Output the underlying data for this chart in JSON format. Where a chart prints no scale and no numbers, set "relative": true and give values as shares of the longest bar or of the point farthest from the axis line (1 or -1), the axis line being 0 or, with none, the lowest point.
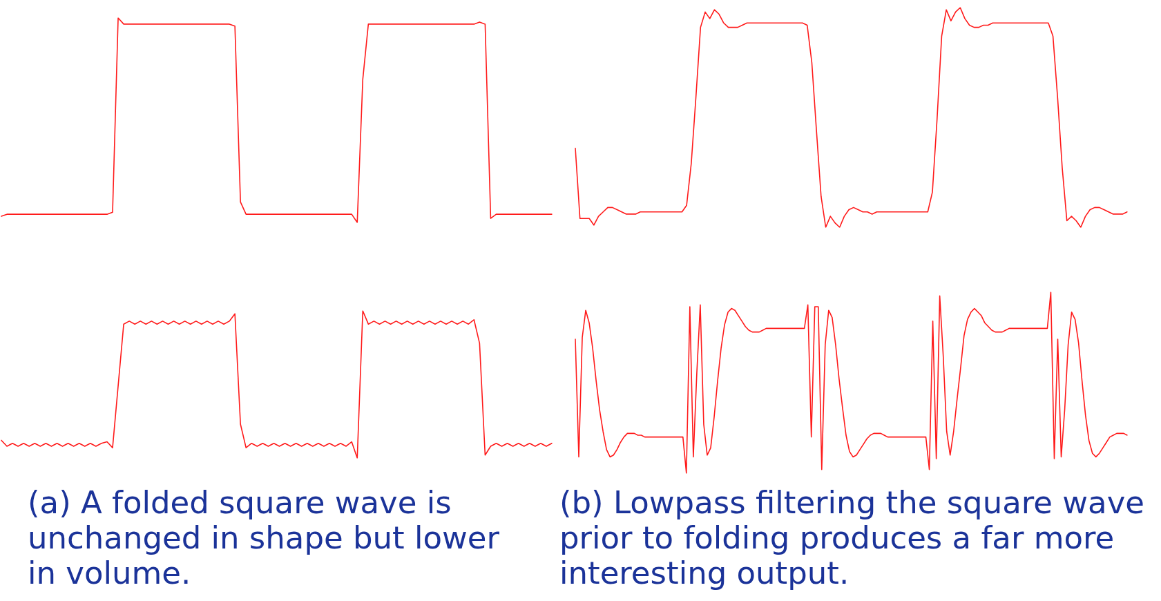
{
  "chart_data": [
    {
      "type": "line",
      "relative": true,
      "color": "#ff1a1a",
      "categories": [
        null,
        null,
        null,
        null,
        null,
        null,
        null,
        null,
        null,
        null,
        null,
        null,
        null,
        null,
        null,
        null,
        null,
        null,
        null,
        null,
        null,
        null,
        null,
        null,
        null,
        null,
        null,
        null,
        null,
        null,
        null,
        null,
        null,
        null,
        null,
        null,
        null,
        null,
        null,
        null,
        null,
        null,
        null,
        null,
        null,
        null,
        null,
        null,
        null,
        null,
        null,
        null,
        null,
        null,
        null,
        null,
        null,
        null,
        null,
        null,
        null,
        null,
        null,
        null,
        null,
        null,
        null,
        null,
        null,
        null,
        null,
        null,
        null,
        null,
        null,
        null,
        null,
        null,
        null,
        null,
        null,
        null,
        null,
        null,
        null,
        null,
        null,
        null,
        null,
        null,
        null,
        null,
        null,
        null,
        null,
        null,
        null,
        null,
        null,
        null
      ],
      "values": [
        0.03,
        0.04,
        0.04,
        0.04,
        0.04,
        0.04,
        0.04,
        0.04,
        0.04,
        0.04,
        0.04,
        0.04,
        0.04,
        0.04,
        0.04,
        0.04,
        0.04,
        0.04,
        0.04,
        0.04,
        0.05,
        1,
        0.97,
        0.97,
        0.97,
        0.97,
        0.97,
        0.97,
        0.97,
        0.97,
        0.97,
        0.97,
        0.97,
        0.97,
        0.97,
        0.97,
        0.97,
        0.97,
        0.97,
        0.97,
        0.97,
        0.97,
        0.96,
        0.1,
        0.04,
        0.04,
        0.04,
        0.04,
        0.04,
        0.04,
        0.04,
        0.04,
        0.04,
        0.04,
        0.04,
        0.04,
        0.04,
        0.04,
        0.04,
        0.04,
        0.04,
        0.04,
        0.04,
        0.04,
        0,
        0.7,
        0.97,
        0.97,
        0.97,
        0.97,
        0.97,
        0.97,
        0.97,
        0.97,
        0.97,
        0.97,
        0.97,
        0.97,
        0.97,
        0.97,
        0.97,
        0.97,
        0.97,
        0.97,
        0.97,
        0.97,
        0.98,
        0.97,
        0.02,
        0.04,
        0.04,
        0.04,
        0.04,
        0.04,
        0.04,
        0.04,
        0.04,
        0.04,
        0.04,
        0.04
      ]
    },
    {
      "type": "line",
      "relative": true,
      "color": "#ff1a1a",
      "categories": [
        null,
        null,
        null,
        null,
        null,
        null,
        null,
        null,
        null,
        null,
        null,
        null,
        null,
        null,
        null,
        null,
        null,
        null,
        null,
        null,
        null,
        null,
        null,
        null,
        null,
        null,
        null,
        null,
        null,
        null,
        null,
        null,
        null,
        null,
        null,
        null,
        null,
        null,
        null,
        null,
        null,
        null,
        null,
        null,
        null,
        null,
        null,
        null,
        null,
        null,
        null,
        null,
        null,
        null,
        null,
        null,
        null,
        null,
        null,
        null,
        null,
        null,
        null,
        null,
        null,
        null,
        null,
        null,
        null,
        null,
        null,
        null,
        null,
        null,
        null,
        null,
        null,
        null,
        null,
        null,
        null,
        null,
        null,
        null,
        null,
        null,
        null,
        null,
        null,
        null,
        null,
        null,
        null,
        null,
        null,
        null,
        null,
        null,
        null,
        null,
        null,
        null,
        null,
        null,
        null,
        null,
        null,
        null,
        null,
        null,
        null,
        null,
        null,
        null,
        null,
        null,
        null,
        null,
        null,
        null
      ],
      "values": [
        0.36,
        0.04,
        0.04,
        0.04,
        0.01,
        0.05,
        0.07,
        0.09,
        0.09,
        0.08,
        0.07,
        0.06,
        0.06,
        0.06,
        0.07,
        0.07,
        0.07,
        0.07,
        0.07,
        0.07,
        0.07,
        0.07,
        0.07,
        0.07,
        0.1,
        0.29,
        0.59,
        0.91,
        0.98,
        0.95,
        0.99,
        0.97,
        0.93,
        0.91,
        0.91,
        0.91,
        0.92,
        0.93,
        0.93,
        0.93,
        0.93,
        0.93,
        0.93,
        0.93,
        0.93,
        0.93,
        0.93,
        0.93,
        0.93,
        0.93,
        0.92,
        0.75,
        0.44,
        0.14,
        0,
        0.05,
        0.02,
        0,
        0.05,
        0.08,
        0.09,
        0.08,
        0.07,
        0.07,
        0.06,
        0.07,
        0.07,
        0.07,
        0.07,
        0.07,
        0.07,
        0.07,
        0.07,
        0.07,
        0.07,
        0.07,
        0.07,
        0.16,
        0.49,
        0.87,
        0.99,
        0.94,
        0.98,
        1,
        0.95,
        0.92,
        0.91,
        0.91,
        0.92,
        0.92,
        0.93,
        0.93,
        0.93,
        0.93,
        0.93,
        0.93,
        0.93,
        0.93,
        0.93,
        0.93,
        0.93,
        0.93,
        0.93,
        0.87,
        0.59,
        0.27,
        0.03,
        0.05,
        0.03,
        0,
        0.05,
        0.08,
        0.09,
        0.09,
        0.08,
        0.07,
        0.06,
        0.06,
        0.06,
        0.07
      ]
    },
    {
      "type": "line",
      "relative": true,
      "color": "#ff1a1a",
      "categories": [
        null,
        null,
        null,
        null,
        null,
        null,
        null,
        null,
        null,
        null,
        null,
        null,
        null,
        null,
        null,
        null,
        null,
        null,
        null,
        null,
        null,
        null,
        null,
        null,
        null,
        null,
        null,
        null,
        null,
        null,
        null,
        null,
        null,
        null,
        null,
        null,
        null,
        null,
        null,
        null,
        null,
        null,
        null,
        null,
        null,
        null,
        null,
        null,
        null,
        null,
        null,
        null,
        null,
        null,
        null,
        null,
        null,
        null,
        null,
        null,
        null,
        null,
        null,
        null,
        null,
        null,
        null,
        null,
        null,
        null,
        null,
        null,
        null,
        null,
        null,
        null,
        null,
        null,
        null,
        null,
        null,
        null,
        null,
        null,
        null,
        null,
        null,
        null,
        null,
        null,
        null,
        null,
        null,
        null,
        null,
        null,
        null,
        null,
        null,
        null
      ],
      "values": [
        0.12,
        0.08,
        0.1,
        0.08,
        0.1,
        0.08,
        0.1,
        0.08,
        0.1,
        0.08,
        0.1,
        0.08,
        0.1,
        0.08,
        0.1,
        0.08,
        0.1,
        0.08,
        0.1,
        0.11,
        0.07,
        0.49,
        0.91,
        0.93,
        0.91,
        0.93,
        0.91,
        0.93,
        0.91,
        0.93,
        0.91,
        0.93,
        0.91,
        0.93,
        0.91,
        0.93,
        0.91,
        0.93,
        0.91,
        0.93,
        0.91,
        0.93,
        0.98,
        0.23,
        0.07,
        0.1,
        0.08,
        0.1,
        0.08,
        0.1,
        0.08,
        0.1,
        0.08,
        0.1,
        0.08,
        0.1,
        0.08,
        0.1,
        0.08,
        0.1,
        0.08,
        0.1,
        0.08,
        0.11,
        0,
        1,
        0.91,
        0.93,
        0.91,
        0.93,
        0.91,
        0.93,
        0.91,
        0.93,
        0.91,
        0.93,
        0.91,
        0.93,
        0.91,
        0.93,
        0.91,
        0.93,
        0.91,
        0.93,
        0.91,
        0.94,
        0.78,
        0.02,
        0.08,
        0.1,
        0.08,
        0.1,
        0.08,
        0.1,
        0.08,
        0.1,
        0.08,
        0.1,
        0.08,
        0.1
      ],
      "annotations": [
        "(a) A folded square wave is unchanged in shape but lower in volume."
      ]
    },
    {
      "type": "line",
      "relative": true,
      "color": "#ff1a1a",
      "categories": [
        null,
        null,
        null,
        null,
        null,
        null,
        null,
        null,
        null,
        null,
        null,
        null,
        null,
        null,
        null,
        null,
        null,
        null,
        null,
        null,
        null,
        null,
        null,
        null,
        null,
        null,
        null,
        null,
        null,
        null,
        null,
        null,
        null,
        null,
        null,
        null,
        null,
        null,
        null,
        null,
        null,
        null,
        null,
        null,
        null,
        null,
        null,
        null,
        null,
        null,
        null,
        null,
        null,
        null,
        null,
        null,
        null,
        null,
        null,
        null,
        null,
        null,
        null,
        null,
        null,
        null,
        null,
        null,
        null,
        null,
        null,
        null,
        null,
        null,
        null,
        null,
        null,
        null,
        null,
        null,
        null,
        null,
        null,
        null,
        null,
        null,
        null,
        null,
        null,
        null,
        null,
        null,
        null,
        null,
        null,
        null,
        null,
        null,
        null,
        null,
        null,
        null,
        null,
        null,
        null,
        null,
        null,
        null,
        null,
        null,
        null,
        null,
        null,
        null,
        null,
        null,
        null,
        null,
        null,
        null,
        null,
        null,
        null,
        null,
        null,
        null,
        null,
        null,
        null,
        null,
        null,
        null,
        null,
        null,
        null,
        null,
        null,
        null,
        null,
        null,
        null,
        null,
        null,
        null,
        null,
        null,
        null,
        null,
        null,
        null,
        null,
        null,
        null,
        null,
        null,
        null,
        null,
        null,
        null,
        null
      ],
      "values": [
        0.74,
        0.09,
        0.75,
        0.9,
        0.83,
        0.69,
        0.51,
        0.35,
        0.23,
        0.13,
        0.09,
        0.1,
        0.13,
        0.17,
        0.2,
        0.22,
        0.22,
        0.22,
        0.21,
        0.21,
        0.2,
        0.2,
        0.2,
        0.2,
        0.2,
        0.2,
        0.2,
        0.2,
        0.2,
        0.2,
        0.2,
        0.2,
        0,
        0.92,
        0.09,
        0.55,
        0.93,
        0.27,
        0.1,
        0.14,
        0.31,
        0.51,
        0.69,
        0.82,
        0.89,
        0.91,
        0.9,
        0.87,
        0.84,
        0.81,
        0.79,
        0.78,
        0.78,
        0.78,
        0.79,
        0.8,
        0.8,
        0.8,
        0.8,
        0.8,
        0.8,
        0.8,
        0.8,
        0.8,
        0.8,
        0.8,
        0.8,
        0.93,
        0.2,
        0.92,
        0.92,
        0.02,
        0.71,
        0.9,
        0.86,
        0.71,
        0.52,
        0.36,
        0.21,
        0.12,
        0.09,
        0.1,
        0.13,
        0.16,
        0.19,
        0.21,
        0.22,
        0.22,
        0.22,
        0.21,
        0.2,
        0.2,
        0.2,
        0.2,
        0.2,
        0.2,
        0.2,
        0.2,
        0.2,
        0.2,
        0.2,
        0.2,
        0.02,
        0.84,
        0.08,
        0.98,
        0.65,
        0.23,
        0.1,
        0.23,
        0.41,
        0.58,
        0.76,
        0.85,
        0.89,
        0.91,
        0.89,
        0.87,
        0.83,
        0.81,
        0.79,
        0.78,
        0.78,
        0.78,
        0.79,
        0.8,
        0.8,
        0.8,
        0.8,
        0.8,
        0.8,
        0.8,
        0.8,
        0.8,
        0.8,
        0.8,
        0.8,
        1,
        0.08,
        0.74,
        0.09,
        0.35,
        0.71,
        0.89,
        0.85,
        0.72,
        0.51,
        0.32,
        0.18,
        0.11,
        0.09,
        0.11,
        0.14,
        0.17,
        0.2,
        0.21,
        0.22,
        0.22,
        0.22,
        0.21
      ],
      "annotations": [
        "(b) Lowpass filtering the square wave prior to folding produces a far more interesting output."
      ]
    }
  ]
}
